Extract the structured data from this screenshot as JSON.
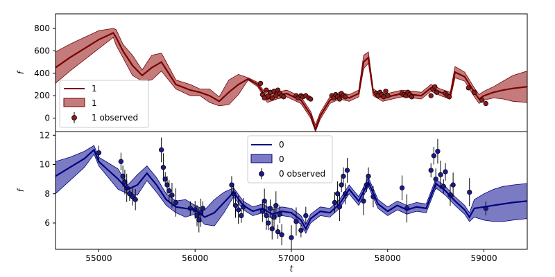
{
  "chart_data": [
    {
      "type": "line",
      "panel": "top",
      "xlabel": "",
      "ylabel": "f",
      "xlim": [
        54550,
        59450
      ],
      "ylim": [
        -120,
        930
      ],
      "yticks": [
        0,
        200,
        400,
        600,
        800
      ],
      "xticks": [
        55000,
        56000,
        57000,
        58000,
        59000
      ],
      "xtick_labels_visible": false,
      "colors": {
        "line": "#7a0000",
        "band": "#b45a5a",
        "points": "#8b1a1a"
      },
      "legend": {
        "placement": "lower-left",
        "entries": [
          "1",
          "1",
          "1 observed"
        ]
      },
      "model": {
        "x": [
          54550,
          54700,
          54850,
          55000,
          55150,
          55180,
          55250,
          55350,
          55450,
          55550,
          55650,
          55800,
          55950,
          56050,
          56150,
          56250,
          56350,
          56450,
          56550,
          56650,
          56750,
          56850,
          56950,
          57000,
          57100,
          57200,
          57250,
          57300,
          57400,
          57500,
          57600,
          57700,
          57750,
          57800,
          57850,
          57950,
          58050,
          58150,
          58250,
          58350,
          58450,
          58550,
          58650,
          58700,
          58800,
          58900,
          58950,
          59000,
          59100,
          59200,
          59300,
          59450
        ],
        "y": [
          450,
          540,
          620,
          700,
          760,
          720,
          600,
          470,
          380,
          450,
          500,
          300,
          250,
          230,
          200,
          150,
          230,
          300,
          350,
          300,
          170,
          200,
          220,
          200,
          160,
          30,
          -100,
          20,
          160,
          200,
          180,
          220,
          500,
          540,
          230,
          180,
          200,
          220,
          210,
          200,
          270,
          230,
          200,
          410,
          370,
          230,
          170,
          200,
          230,
          250,
          265,
          280
        ],
        "upper": [
          590,
          660,
          720,
          780,
          800,
          790,
          660,
          560,
          430,
          560,
          580,
          340,
          300,
          260,
          260,
          190,
          340,
          390,
          360,
          320,
          200,
          230,
          250,
          230,
          190,
          60,
          -60,
          50,
          190,
          230,
          210,
          250,
          560,
          590,
          260,
          210,
          230,
          250,
          240,
          230,
          300,
          260,
          230,
          460,
          410,
          270,
          210,
          240,
          280,
          330,
          380,
          420
        ],
        "lower": [
          310,
          420,
          520,
          620,
          720,
          650,
          540,
          380,
          330,
          340,
          420,
          260,
          200,
          200,
          140,
          110,
          120,
          210,
          340,
          280,
          140,
          170,
          190,
          170,
          130,
          0,
          -130,
          -10,
          130,
          170,
          150,
          190,
          440,
          490,
          200,
          150,
          170,
          190,
          180,
          170,
          240,
          200,
          170,
          360,
          330,
          190,
          130,
          160,
          180,
          170,
          150,
          140
        ]
      },
      "observed": {
        "x": [
          56680,
          56700,
          56720,
          56740,
          56760,
          56780,
          56800,
          56820,
          56840,
          56860,
          56880,
          56900,
          56920,
          57050,
          57070,
          57100,
          57120,
          57150,
          57180,
          57200,
          57420,
          57440,
          57460,
          57480,
          57500,
          57520,
          57540,
          57560,
          57880,
          57900,
          57920,
          57940,
          57960,
          57980,
          58000,
          58150,
          58170,
          58190,
          58210,
          58230,
          58250,
          58450,
          58470,
          58490,
          58510,
          58600,
          58620,
          58640,
          58840,
          58900,
          58980,
          59020
        ],
        "y": [
          310,
          210,
          180,
          250,
          200,
          230,
          180,
          240,
          200,
          250,
          220,
          200,
          190,
          200,
          180,
          200,
          190,
          200,
          180,
          170,
          200,
          180,
          210,
          190,
          170,
          220,
          200,
          190,
          220,
          200,
          230,
          210,
          190,
          240,
          200,
          220,
          210,
          200,
          230,
          210,
          190,
          200,
          260,
          280,
          230,
          220,
          200,
          190,
          270,
          230,
          160,
          130
        ]
      }
    },
    {
      "type": "line",
      "panel": "bottom",
      "xlabel": "t",
      "ylabel": "f",
      "xlim": [
        54550,
        59450
      ],
      "ylim": [
        4.2,
        12.25
      ],
      "yticks": [
        6,
        8,
        10,
        12
      ],
      "xticks": [
        55000,
        56000,
        57000,
        58000,
        59000
      ],
      "colors": {
        "line": "#000080",
        "band": "#5a5ab4",
        "points": "#1a1a8b"
      },
      "legend": {
        "placement": "top-center",
        "entries": [
          "0",
          "0",
          "0 observed"
        ]
      },
      "model": {
        "x": [
          54550,
          54700,
          54850,
          54950,
          55000,
          55100,
          55200,
          55300,
          55400,
          55500,
          55600,
          55700,
          55800,
          55900,
          56000,
          56100,
          56200,
          56300,
          56400,
          56500,
          56600,
          56700,
          56800,
          56900,
          57000,
          57100,
          57150,
          57200,
          57300,
          57400,
          57500,
          57600,
          57700,
          57800,
          57900,
          58000,
          58100,
          58200,
          58300,
          58400,
          58500,
          58600,
          58700,
          58800,
          58850,
          58900,
          59000,
          59100,
          59200,
          59300,
          59450
        ],
        "y": [
          9.2,
          9.8,
          10.4,
          11.0,
          10.2,
          9.6,
          9.0,
          8.3,
          8.6,
          9.4,
          8.6,
          7.6,
          7.1,
          7.0,
          6.9,
          6.4,
          6.7,
          7.4,
          8.1,
          7.2,
          6.8,
          7.0,
          6.6,
          6.8,
          6.7,
          6.2,
          5.6,
          6.3,
          6.8,
          6.7,
          7.3,
          8.3,
          7.5,
          8.8,
          7.3,
          6.8,
          7.2,
          6.9,
          7.1,
          7.0,
          8.7,
          8.2,
          7.5,
          6.9,
          6.4,
          7.0,
          7.1,
          7.2,
          7.3,
          7.4,
          7.5
        ],
        "upper": [
          10.2,
          10.5,
          10.9,
          11.3,
          10.5,
          10.1,
          9.7,
          8.6,
          9.3,
          9.9,
          9.1,
          8.0,
          7.5,
          7.6,
          7.2,
          6.9,
          7.6,
          8.1,
          8.4,
          7.5,
          7.1,
          7.3,
          6.9,
          7.1,
          7.0,
          6.5,
          5.9,
          6.6,
          7.1,
          7.0,
          7.6,
          8.6,
          7.8,
          9.1,
          7.6,
          7.1,
          7.5,
          7.2,
          7.4,
          7.3,
          9.0,
          8.5,
          7.8,
          7.2,
          6.7,
          7.6,
          8.0,
          8.3,
          8.5,
          8.6,
          8.7
        ],
        "lower": [
          8.0,
          8.9,
          9.8,
          10.7,
          9.9,
          9.1,
          8.3,
          8.0,
          7.9,
          8.9,
          8.1,
          7.2,
          6.7,
          6.4,
          6.6,
          5.9,
          5.8,
          6.7,
          7.8,
          6.9,
          6.5,
          6.7,
          6.3,
          6.5,
          6.4,
          5.9,
          5.3,
          6.0,
          6.5,
          6.4,
          7.0,
          8.0,
          7.2,
          8.5,
          7.0,
          6.5,
          6.9,
          6.6,
          6.8,
          6.7,
          8.4,
          7.9,
          7.2,
          6.6,
          6.1,
          6.4,
          6.2,
          6.1,
          6.1,
          6.2,
          6.3
        ]
      },
      "observed": {
        "x": [
          55000,
          55230,
          55250,
          55270,
          55290,
          55320,
          55350,
          55380,
          55650,
          55670,
          55690,
          55710,
          55730,
          55760,
          55800,
          55950,
          56000,
          56020,
          56040,
          56060,
          56080,
          56380,
          56400,
          56420,
          56450,
          56480,
          56500,
          56700,
          56720,
          56740,
          56760,
          56780,
          56800,
          56820,
          56840,
          56860,
          56880,
          56900,
          57000,
          57050,
          57100,
          57150,
          57450,
          57480,
          57500,
          57520,
          57540,
          57560,
          57580,
          57750,
          57780,
          57800,
          57850,
          58150,
          58200,
          58450,
          58480,
          58500,
          58520,
          58550,
          58580,
          58600,
          58650,
          58680,
          58850,
          59020
        ],
        "y": [
          10.8,
          10.2,
          9.2,
          8.8,
          8.4,
          8.0,
          7.8,
          7.6,
          11.0,
          9.8,
          9.0,
          8.6,
          8.2,
          7.9,
          7.4,
          7.0,
          6.9,
          6.5,
          6.2,
          6.7,
          7.0,
          8.6,
          8.0,
          7.2,
          6.9,
          6.5,
          7.1,
          6.8,
          7.5,
          6.5,
          6.0,
          7.0,
          5.6,
          6.4,
          7.2,
          5.4,
          6.6,
          5.2,
          5.0,
          6.1,
          5.5,
          6.5,
          7.4,
          8.0,
          7.1,
          8.6,
          9.2,
          8.0,
          9.6,
          7.5,
          8.6,
          9.2,
          7.8,
          8.4,
          7.0,
          9.6,
          10.6,
          9.0,
          10.9,
          9.3,
          8.5,
          9.5,
          7.9,
          8.6,
          8.1,
          7.0
        ]
      }
    }
  ]
}
